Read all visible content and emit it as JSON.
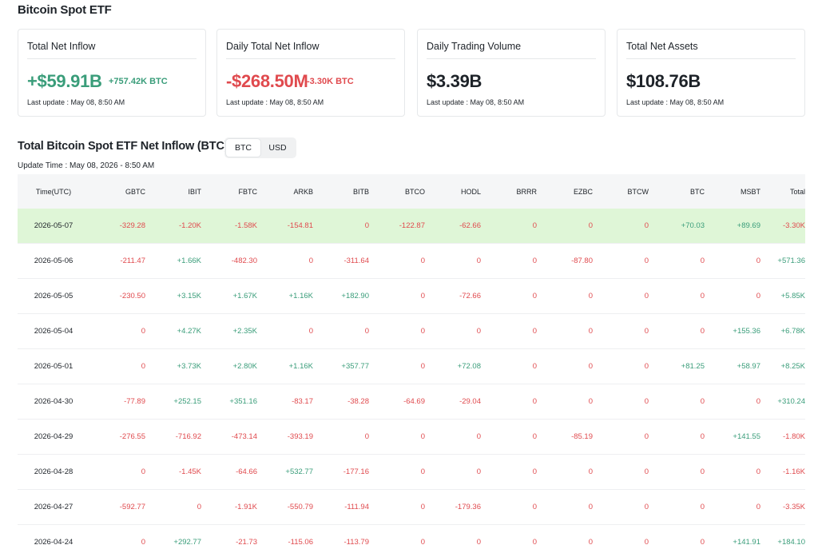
{
  "page_title": "Bitcoin Spot ETF",
  "cards": [
    {
      "label": "Total Net Inflow",
      "value": "+$59.91B",
      "value_class": "pos",
      "sub": "+757.42K BTC",
      "sub_class": "pos",
      "update": "Last update : May 08, 8:50 AM"
    },
    {
      "label": "Daily Total Net Inflow",
      "value": "-$268.50M",
      "value_class": "neg",
      "sub": "-3.30K BTC",
      "sub_class": "neg",
      "update": "Last update : May 08, 8:50 AM"
    },
    {
      "label": "Daily Trading Volume",
      "value": "$3.39B",
      "value_class": "neutral",
      "sub": "",
      "sub_class": "",
      "update": "Last update : May 08, 8:50 AM"
    },
    {
      "label": "Total Net Assets",
      "value": "$108.76B",
      "value_class": "neutral",
      "sub": "",
      "sub_class": "",
      "update": "Last update : May 08, 8:50 AM"
    }
  ],
  "section": {
    "title": "Total Bitcoin Spot ETF Net Inflow (BTC)",
    "toggle": [
      "BTC",
      "USD"
    ],
    "toggle_active": "BTC",
    "update_time": "Update Time : May 08, 2026 - 8:50 AM"
  },
  "table": {
    "columns": [
      "Time(UTC)",
      "GBTC",
      "IBIT",
      "FBTC",
      "ARKB",
      "BITB",
      "BTCO",
      "HODL",
      "BRRR",
      "EZBC",
      "BTCW",
      "BTC",
      "MSBT",
      "Total"
    ],
    "rows": [
      [
        "2026-05-07",
        "-329.28",
        "-1.20K",
        "-1.58K",
        "-154.81",
        "0",
        "-122.87",
        "-62.66",
        "0",
        "0",
        "0",
        "+70.03",
        "+89.69",
        "-3.30K"
      ],
      [
        "2026-05-06",
        "-211.47",
        "+1.66K",
        "-482.30",
        "0",
        "-311.64",
        "0",
        "0",
        "0",
        "-87.80",
        "0",
        "0",
        "0",
        "+571.36"
      ],
      [
        "2026-05-05",
        "-230.50",
        "+3.15K",
        "+1.67K",
        "+1.16K",
        "+182.90",
        "0",
        "-72.66",
        "0",
        "0",
        "0",
        "0",
        "0",
        "+5.85K"
      ],
      [
        "2026-05-04",
        "0",
        "+4.27K",
        "+2.35K",
        "0",
        "0",
        "0",
        "0",
        "0",
        "0",
        "0",
        "0",
        "+155.36",
        "+6.78K"
      ],
      [
        "2026-05-01",
        "0",
        "+3.73K",
        "+2.80K",
        "+1.16K",
        "+357.77",
        "0",
        "+72.08",
        "0",
        "0",
        "0",
        "+81.25",
        "+58.97",
        "+8.25K"
      ],
      [
        "2026-04-30",
        "-77.89",
        "+252.15",
        "+351.16",
        "-83.17",
        "-38.28",
        "-64.69",
        "-29.04",
        "0",
        "0",
        "0",
        "0",
        "0",
        "+310.24"
      ],
      [
        "2026-04-29",
        "-276.55",
        "-716.92",
        "-473.14",
        "-393.19",
        "0",
        "0",
        "0",
        "0",
        "-85.19",
        "0",
        "0",
        "+141.55",
        "-1.80K"
      ],
      [
        "2026-04-28",
        "0",
        "-1.45K",
        "-64.66",
        "+532.77",
        "-177.16",
        "0",
        "0",
        "0",
        "0",
        "0",
        "0",
        "0",
        "-1.16K"
      ],
      [
        "2026-04-27",
        "-592.77",
        "0",
        "-1.91K",
        "-550.79",
        "-111.94",
        "0",
        "-179.36",
        "0",
        "0",
        "0",
        "0",
        "0",
        "-3.35K"
      ],
      [
        "2026-04-24",
        "0",
        "+292.77",
        "-21.73",
        "-115.06",
        "-113.79",
        "0",
        "0",
        "0",
        "0",
        "0",
        "0",
        "+141.91",
        "+184.10"
      ]
    ],
    "highlight_row": 0
  }
}
